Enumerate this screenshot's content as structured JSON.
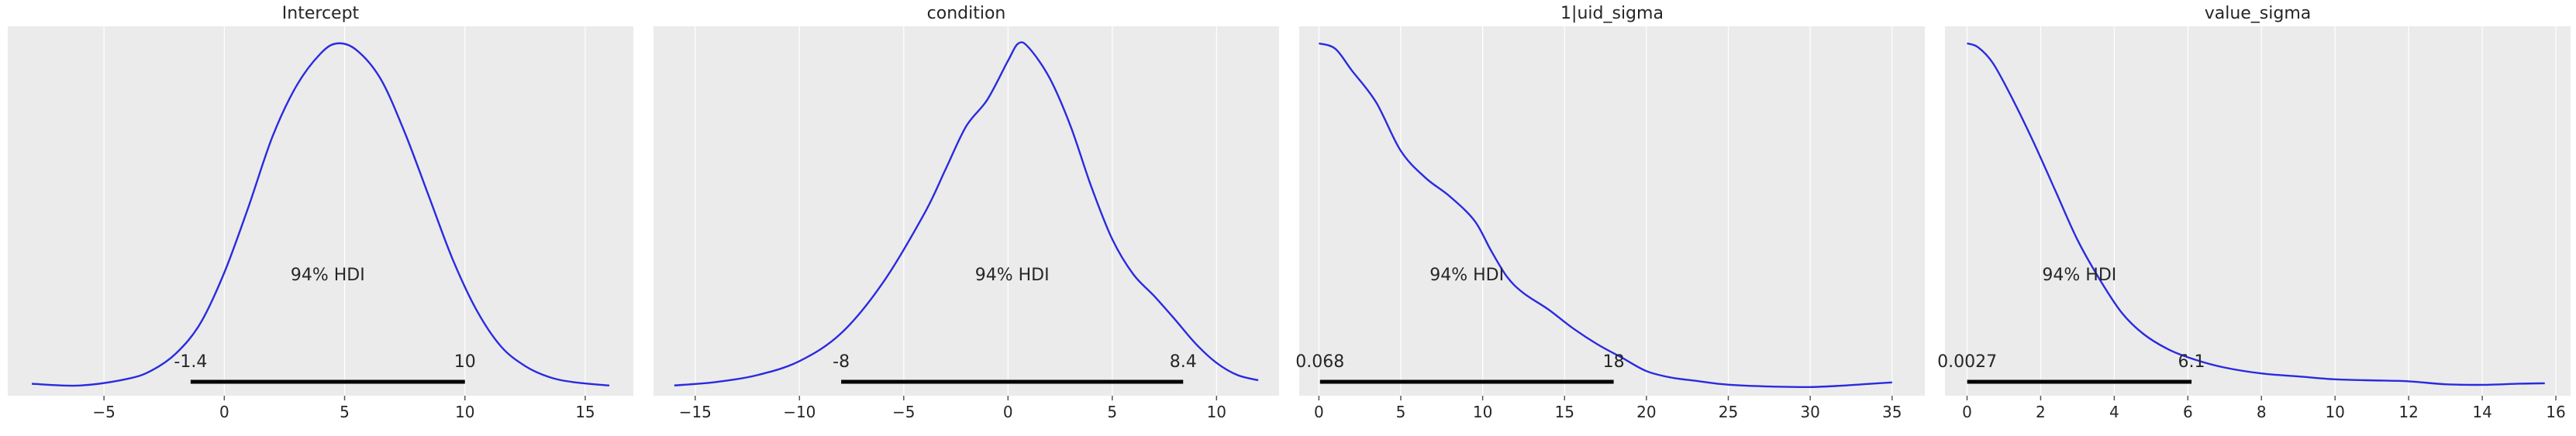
{
  "chart_data": [
    {
      "type": "line",
      "title": "Intercept",
      "xlim": [
        -9.0,
        17.0
      ],
      "xticks": [
        -5,
        0,
        5,
        10,
        15
      ],
      "xtick_labels": [
        "−5",
        "0",
        "5",
        "10",
        "15"
      ],
      "grid": true,
      "hdi": {
        "label": "94% HDI",
        "low": -1.4,
        "high": 10,
        "low_label": "-1.4",
        "high_label": "10"
      },
      "x": [
        -8.0,
        -6.0,
        -4.0,
        -3.0,
        -2.0,
        -1.0,
        0.0,
        1.0,
        2.0,
        3.0,
        4.0,
        4.7,
        5.5,
        6.5,
        7.5,
        8.5,
        9.5,
        10.5,
        11.5,
        12.5,
        13.5,
        14.5,
        16.0
      ],
      "y": [
        0.004,
        0.002,
        0.01,
        0.02,
        0.04,
        0.075,
        0.135,
        0.212,
        0.295,
        0.355,
        0.393,
        0.405,
        0.397,
        0.363,
        0.3,
        0.225,
        0.15,
        0.09,
        0.048,
        0.025,
        0.012,
        0.006,
        0.002
      ]
    },
    {
      "type": "line",
      "title": "condition",
      "xlim": [
        -17.0,
        13.0
      ],
      "xticks": [
        -15,
        -10,
        -5,
        0,
        5,
        10
      ],
      "xtick_labels": [
        "−15",
        "−10",
        "−5",
        "0",
        "5",
        "10"
      ],
      "grid": true,
      "hdi": {
        "label": "94% HDI",
        "low": -8,
        "high": 8.4,
        "low_label": "-8",
        "high_label": "8.4"
      },
      "x": [
        -16.0,
        -14.0,
        -12.0,
        -10.0,
        -8.0,
        -6.0,
        -4.0,
        -3.0,
        -2.0,
        -1.0,
        0.0,
        0.5,
        1.0,
        2.0,
        3.0,
        4.0,
        5.0,
        6.0,
        7.0,
        8.0,
        9.0,
        10.0,
        11.0,
        12.0
      ],
      "y": [
        0.002,
        0.006,
        0.014,
        0.03,
        0.062,
        0.12,
        0.2,
        0.25,
        0.3,
        0.33,
        0.375,
        0.395,
        0.39,
        0.355,
        0.3,
        0.23,
        0.17,
        0.13,
        0.105,
        0.078,
        0.05,
        0.028,
        0.014,
        0.008
      ]
    },
    {
      "type": "line",
      "title": "1|uid_sigma",
      "xlim": [
        -1.2,
        37.0
      ],
      "xticks": [
        0,
        5,
        10,
        15,
        20,
        25,
        30,
        35
      ],
      "xtick_labels": [
        "0",
        "5",
        "10",
        "15",
        "20",
        "25",
        "30",
        "35"
      ],
      "grid": true,
      "hdi": {
        "label": "94% HDI",
        "low": 0.068,
        "high": 18,
        "low_label": "0.068",
        "high_label": "18"
      },
      "x": [
        0.0,
        1.0,
        2.0,
        3.5,
        5.0,
        6.5,
        8.0,
        9.5,
        10.5,
        11.5,
        12.5,
        14.0,
        15.5,
        17.0,
        18.5,
        20.0,
        21.5,
        23.0,
        24.5,
        26.0,
        28.0,
        30.0,
        32.0,
        33.5,
        35.0
      ],
      "y": [
        0.064,
        0.063,
        0.059,
        0.053,
        0.044,
        0.039,
        0.0355,
        0.031,
        0.0255,
        0.0205,
        0.0175,
        0.0145,
        0.011,
        0.008,
        0.0055,
        0.003,
        0.0018,
        0.0012,
        0.0006,
        0.0003,
        0.0001,
        3e-05,
        0.0003,
        0.0006,
        0.0009
      ]
    },
    {
      "type": "line",
      "title": "value_sigma",
      "xlim": [
        -0.6,
        16.4
      ],
      "xticks": [
        0,
        2,
        4,
        6,
        8,
        10,
        12,
        14,
        16
      ],
      "xtick_labels": [
        "0",
        "2",
        "4",
        "6",
        "8",
        "10",
        "12",
        "14",
        "16"
      ],
      "grid": true,
      "hdi": {
        "label": "94% HDI",
        "low": 0.0027,
        "high": 6.1,
        "low_label": "0.0027",
        "high_label": "6.1"
      },
      "x": [
        0.0,
        0.3,
        0.7,
        1.2,
        1.8,
        2.4,
        3.0,
        3.6,
        4.2,
        4.8,
        5.5,
        6.2,
        7.0,
        8.0,
        9.0,
        10.0,
        11.0,
        12.0,
        13.0,
        14.0,
        15.0,
        15.7
      ],
      "y": [
        0.175,
        0.173,
        0.165,
        0.148,
        0.125,
        0.1,
        0.075,
        0.055,
        0.038,
        0.027,
        0.019,
        0.014,
        0.01,
        0.007,
        0.0055,
        0.004,
        0.0035,
        0.003,
        0.0015,
        0.0012,
        0.0018,
        0.002
      ]
    }
  ]
}
